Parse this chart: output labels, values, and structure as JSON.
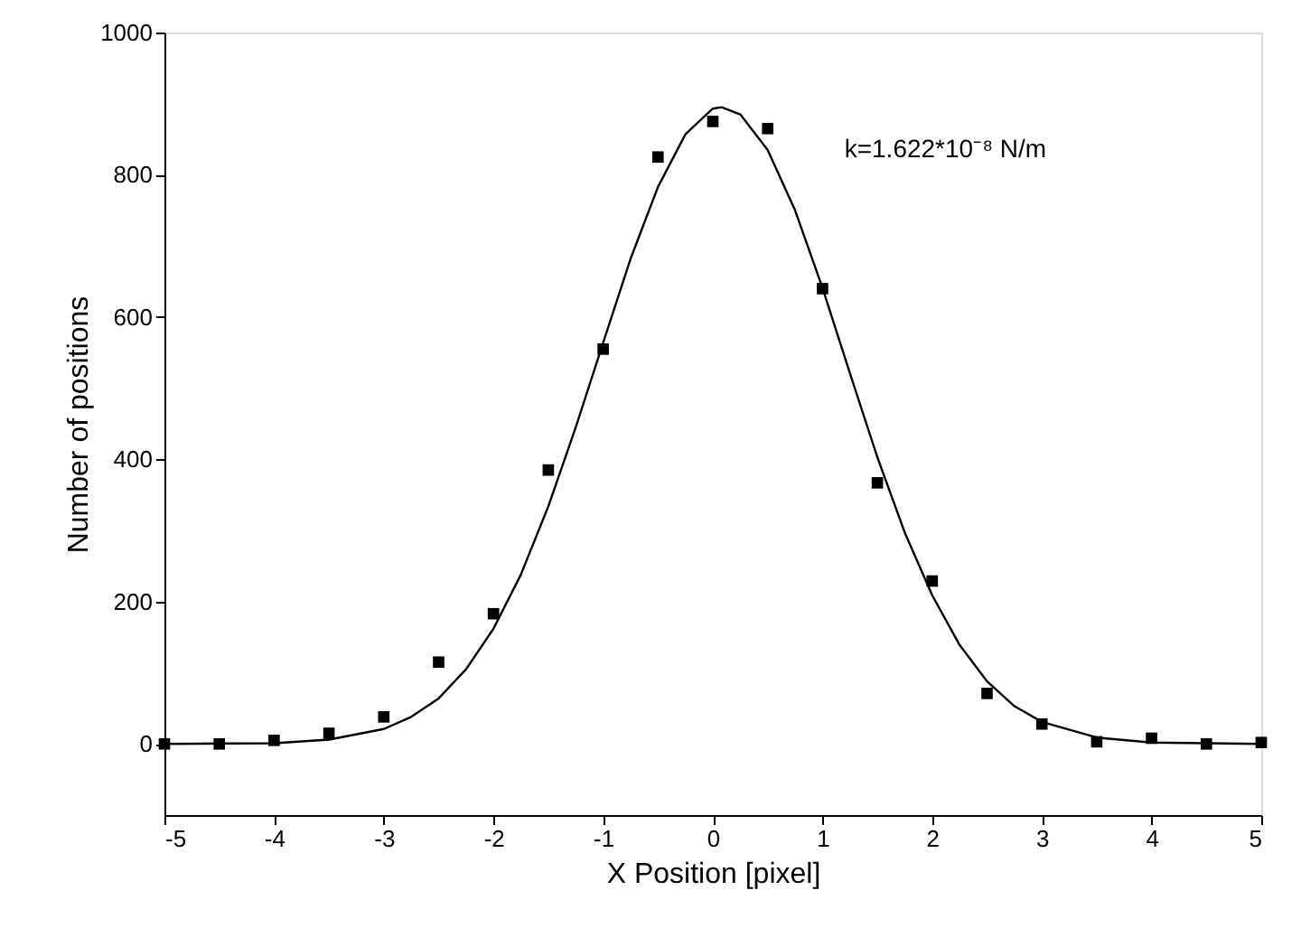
{
  "chart_data": {
    "type": "scatter",
    "xlabel": "X Position [pixel]",
    "ylabel": "Number of positions",
    "annotations": [
      "k=1.622*10⁻⁸ N/m"
    ],
    "xlim": [
      -5,
      5
    ],
    "xticks": [
      -5,
      -4,
      -3,
      -2,
      -1,
      0,
      1,
      2,
      3,
      4,
      5
    ],
    "ylim": [
      -100,
      1000
    ],
    "yticks": [
      0,
      200,
      400,
      600,
      800,
      1000
    ],
    "grid": false,
    "series": [
      {
        "color": "#000000",
        "marker": "square",
        "x": [
          -5,
          -4.5,
          -4,
          -3.5,
          -3,
          -2.5,
          -2,
          -1.5,
          -1,
          -0.5,
          0,
          0.5,
          1,
          1.5,
          2,
          2.5,
          3,
          3.5,
          4,
          4.5,
          5
        ],
        "values": [
          0,
          0,
          5,
          15,
          38,
          115,
          183,
          385,
          555,
          825,
          875,
          865,
          640,
          367,
          229,
          71,
          28,
          3,
          8,
          0,
          2
        ]
      },
      {
        "type": "line",
        "color": "#000000",
        "line_style": "solid",
        "x": [
          -5,
          -4,
          -3.5,
          -3,
          -2.75,
          -2.5,
          -2.25,
          -2,
          -1.75,
          -1.5,
          -1.25,
          -1,
          -0.75,
          -0.5,
          -0.25,
          0,
          0.08,
          0.25,
          0.5,
          0.75,
          1,
          1.25,
          1.5,
          1.75,
          2,
          2.25,
          2.5,
          2.75,
          3,
          3.5,
          4,
          5
        ],
        "values": [
          0,
          1,
          6,
          21,
          38,
          64,
          105,
          162,
          238,
          334,
          445,
          564,
          682,
          783,
          857,
          893,
          895,
          885,
          835,
          750,
          641,
          521,
          403,
          297,
          209,
          139,
          88,
          53,
          31,
          9,
          2,
          0
        ]
      }
    ]
  }
}
